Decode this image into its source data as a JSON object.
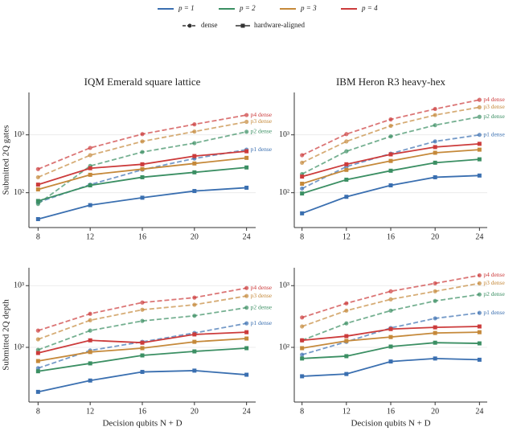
{
  "legend": [
    {
      "label": "p = 1",
      "color": "#3a6fb0"
    },
    {
      "label": "p = 2",
      "color": "#3b8f63"
    },
    {
      "label": "p = 3",
      "color": "#c5893a"
    },
    {
      "label": "p = 4",
      "color": "#cc3b3b"
    }
  ],
  "styles": [
    {
      "label": "dense",
      "dashed": true
    },
    {
      "label": "hardware-aligned",
      "dashed": false
    }
  ],
  "chart_data": [
    {
      "type": "line",
      "title": "IQM Emerald square lattice",
      "ylabel": "Submitted 2Q gates",
      "x": [
        8,
        12,
        16,
        20,
        24
      ],
      "xlim": [
        7.3,
        24.7
      ],
      "xticks": [
        8,
        12,
        16,
        20,
        24
      ],
      "ylim": [
        25,
        5400
      ],
      "yticks": [
        {
          "value": 100,
          "label": "10²"
        },
        {
          "value": 1000,
          "label": "10³"
        }
      ],
      "log_y": true,
      "grid": true,
      "series": [
        {
          "name": "p1 dense",
          "color": "#3a6fb0",
          "dashed": true,
          "values": [
            68,
            138,
            250,
            390,
            555
          ]
        },
        {
          "color": "#3a6fb0",
          "dashed": false,
          "values": [
            35,
            61,
            82,
            107,
            122
          ]
        },
        {
          "name": "p2 dense",
          "color": "#3b8f63",
          "dashed": true,
          "values": [
            64,
            290,
            505,
            720,
            1130
          ]
        },
        {
          "color": "#3b8f63",
          "dashed": false,
          "values": [
            72,
            134,
            185,
            225,
            273
          ]
        },
        {
          "name": "p3 dense",
          "color": "#c5893a",
          "dashed": true,
          "values": [
            185,
            445,
            770,
            1140,
            1680
          ]
        },
        {
          "color": "#c5893a",
          "dashed": false,
          "values": [
            114,
            204,
            256,
            320,
            400
          ]
        },
        {
          "name": "p4 dense",
          "color": "#cc3b3b",
          "dashed": true,
          "values": [
            256,
            595,
            1030,
            1520,
            2200
          ]
        },
        {
          "color": "#cc3b3b",
          "dashed": false,
          "values": [
            138,
            265,
            310,
            430,
            520
          ]
        }
      ]
    },
    {
      "type": "line",
      "title": "IBM Heron R3 heavy-hex",
      "x": [
        8,
        12,
        16,
        20,
        24
      ],
      "xlim": [
        7.3,
        24.7
      ],
      "xticks": [
        8,
        12,
        16,
        20,
        24
      ],
      "ylim": [
        25,
        5400
      ],
      "yticks": [
        {
          "value": 100,
          "label": "10²"
        },
        {
          "value": 1000,
          "label": "10³"
        }
      ],
      "log_y": true,
      "grid": true,
      "series": [
        {
          "name": "p1 dense",
          "color": "#3a6fb0",
          "dashed": true,
          "values": [
            118,
            282,
            474,
            770,
            1000
          ]
        },
        {
          "color": "#3a6fb0",
          "dashed": false,
          "values": [
            44,
            85,
            134,
            185,
            198
          ]
        },
        {
          "name": "p2 dense",
          "color": "#3b8f63",
          "dashed": true,
          "values": [
            210,
            520,
            940,
            1470,
            2050
          ]
        },
        {
          "color": "#3b8f63",
          "dashed": false,
          "values": [
            97,
            168,
            240,
            330,
            378
          ]
        },
        {
          "name": "p3 dense",
          "color": "#c5893a",
          "dashed": true,
          "values": [
            330,
            770,
            1430,
            2200,
            3000
          ]
        },
        {
          "color": "#c5893a",
          "dashed": false,
          "values": [
            143,
            248,
            354,
            490,
            555
          ]
        },
        {
          "name": "p4 dense",
          "color": "#cc3b3b",
          "dashed": true,
          "values": [
            445,
            1030,
            1850,
            2800,
            4030
          ]
        },
        {
          "color": "#cc3b3b",
          "dashed": false,
          "values": [
            190,
            310,
            460,
            615,
            700
          ]
        }
      ]
    },
    {
      "type": "line",
      "ylabel": "Submitted 2Q depth",
      "xlabel": "Decision qubits N + D",
      "x": [
        8,
        12,
        16,
        20,
        24
      ],
      "xlim": [
        7.3,
        24.7
      ],
      "xticks": [
        8,
        12,
        16,
        20,
        24
      ],
      "ylim": [
        13,
        1950
      ],
      "yticks": [
        {
          "value": 100,
          "label": "10²"
        },
        {
          "value": 1000,
          "label": "10³"
        }
      ],
      "log_y": true,
      "grid": true,
      "series": [
        {
          "name": "p1 dense",
          "color": "#3a6fb0",
          "dashed": true,
          "values": [
            46,
            89,
            123,
            171,
            245
          ]
        },
        {
          "color": "#3a6fb0",
          "dashed": false,
          "values": [
            19,
            29,
            40,
            42,
            36
          ]
        },
        {
          "name": "p2 dense",
          "color": "#3b8f63",
          "dashed": true,
          "values": [
            91,
            187,
            268,
            325,
            440
          ]
        },
        {
          "color": "#3b8f63",
          "dashed": false,
          "values": [
            41,
            55,
            74,
            86,
            97
          ]
        },
        {
          "name": "p3 dense",
          "color": "#c5893a",
          "dashed": true,
          "values": [
            135,
            275,
            407,
            490,
            680
          ]
        },
        {
          "color": "#c5893a",
          "dashed": false,
          "values": [
            60,
            84,
            97,
            123,
            139
          ]
        },
        {
          "name": "p4 dense",
          "color": "#cc3b3b",
          "dashed": true,
          "values": [
            187,
            350,
            533,
            640,
            915
          ]
        },
        {
          "color": "#cc3b3b",
          "dashed": false,
          "values": [
            81,
            130,
            119,
            162,
            176
          ]
        }
      ]
    },
    {
      "type": "line",
      "xlabel": "Decision qubits N + D",
      "x": [
        8,
        12,
        16,
        20,
        24
      ],
      "xlim": [
        7.3,
        24.7
      ],
      "xticks": [
        8,
        12,
        16,
        20,
        24
      ],
      "ylim": [
        13,
        1950
      ],
      "yticks": [
        {
          "value": 100,
          "label": "10²"
        },
        {
          "value": 1000,
          "label": "10³"
        }
      ],
      "log_y": true,
      "grid": true,
      "series": [
        {
          "name": "p1 dense",
          "color": "#3a6fb0",
          "dashed": true,
          "values": [
            76,
            123,
            206,
            295,
            362
          ]
        },
        {
          "color": "#3a6fb0",
          "dashed": false,
          "values": [
            34,
            37,
            59,
            66,
            63
          ]
        },
        {
          "name": "p2 dense",
          "color": "#3b8f63",
          "dashed": true,
          "values": [
            130,
            245,
            394,
            566,
            720
          ]
        },
        {
          "color": "#3b8f63",
          "dashed": false,
          "values": [
            66,
            72,
            103,
            119,
            116
          ]
        },
        {
          "name": "p3 dense",
          "color": "#c5893a",
          "dashed": true,
          "values": [
            218,
            394,
            600,
            810,
            1090
          ]
        },
        {
          "color": "#c5893a",
          "dashed": false,
          "values": [
            97,
            127,
            147,
            171,
            176
          ]
        },
        {
          "name": "p4 dense",
          "color": "#cc3b3b",
          "dashed": true,
          "values": [
            305,
            517,
            810,
            1090,
            1470
          ]
        },
        {
          "color": "#cc3b3b",
          "dashed": false,
          "values": [
            130,
            152,
            198,
            211,
            218
          ]
        }
      ]
    }
  ]
}
